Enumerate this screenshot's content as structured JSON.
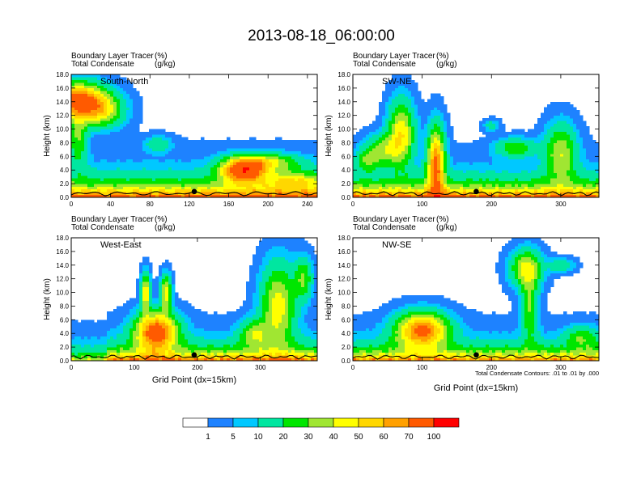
{
  "figure": {
    "title": "2013-08-18_06:00:00",
    "contour_note": "Total Condensate Contours: .01 to .01 by .000",
    "xlabel": "Grid Point (dx=15km)",
    "ylabel": "Height (km)"
  },
  "chart_data": [
    {
      "type": "heatmap",
      "panel": "South-North",
      "header_left": [
        "Boundary Layer Tracer",
        "Total Condensate"
      ],
      "header_units": [
        "(%)",
        "(g/kg)"
      ],
      "xlim": [
        0,
        250
      ],
      "xticks": [
        "0",
        "40",
        "80",
        "120",
        "160",
        "200",
        "240"
      ],
      "xtick_values": [
        0,
        40,
        80,
        120,
        160,
        200,
        240
      ],
      "ylim": [
        0,
        18
      ],
      "yticks": [
        "0.0",
        "2.0",
        "4.0",
        "6.0",
        "8.0",
        "10.0",
        "12.0",
        "14.0",
        "16.0",
        "18.0"
      ],
      "ytick_values": [
        0,
        2,
        4,
        6,
        8,
        10,
        12,
        14,
        16,
        18
      ],
      "xlabel": "",
      "ylabel": "Height (km)",
      "marker_x": 125
    },
    {
      "type": "heatmap",
      "panel": "SW-NE",
      "header_left": [
        "Boundary Layer Tracer",
        "Total Condensate"
      ],
      "header_units": [
        "(%)",
        "(g/kg)"
      ],
      "xlim": [
        0,
        355
      ],
      "xticks": [
        "0",
        "100",
        "200",
        "300"
      ],
      "xtick_values": [
        0,
        100,
        200,
        300
      ],
      "ylim": [
        0,
        18
      ],
      "yticks": [
        "0.0",
        "2.0",
        "4.0",
        "6.0",
        "8.0",
        "10.0",
        "12.0",
        "14.0",
        "16.0",
        "18.0"
      ],
      "ytick_values": [
        0,
        2,
        4,
        6,
        8,
        10,
        12,
        14,
        16,
        18
      ],
      "xlabel": "",
      "ylabel": "Height (km)",
      "marker_x": 178
    },
    {
      "type": "heatmap",
      "panel": "West-East",
      "header_left": [
        "Boundary Layer Tracer",
        "Total Condensate"
      ],
      "header_units": [
        "(%)",
        "(g/kg)"
      ],
      "xlim": [
        0,
        390
      ],
      "xticks": [
        "0",
        "100",
        "200",
        "300"
      ],
      "xtick_values": [
        0,
        100,
        200,
        300
      ],
      "ylim": [
        0,
        18
      ],
      "yticks": [
        "0.0",
        "2.0",
        "4.0",
        "6.0",
        "8.0",
        "10.0",
        "12.0",
        "14.0",
        "16.0",
        "18.0"
      ],
      "ytick_values": [
        0,
        2,
        4,
        6,
        8,
        10,
        12,
        14,
        16,
        18
      ],
      "xlabel": "Grid Point (dx=15km)",
      "ylabel": "Height (km)",
      "marker_x": 195
    },
    {
      "type": "heatmap",
      "panel": "NW-SE",
      "header_left": [
        "Boundary Layer Tracer",
        "Total Condensate"
      ],
      "header_units": [
        "(%)",
        "(g/kg)"
      ],
      "xlim": [
        0,
        355
      ],
      "xticks": [
        "0",
        "100",
        "200",
        "300"
      ],
      "xtick_values": [
        0,
        100,
        200,
        300
      ],
      "ylim": [
        0,
        18
      ],
      "yticks": [
        "0.0",
        "2.0",
        "4.0",
        "6.0",
        "8.0",
        "10.0",
        "12.0",
        "14.0",
        "16.0",
        "18.0"
      ],
      "ytick_values": [
        0,
        2,
        4,
        6,
        8,
        10,
        12,
        14,
        16,
        18
      ],
      "xlabel": "Grid Point (dx=15km)",
      "ylabel": "Height (km)",
      "marker_x": 178
    }
  ],
  "colorbar": {
    "levels": [
      0,
      1,
      5,
      10,
      20,
      30,
      40,
      50,
      60,
      70,
      100
    ],
    "labels": [
      "1",
      "5",
      "10",
      "20",
      "30",
      "40",
      "50",
      "60",
      "70",
      "100"
    ],
    "colors": [
      "#ffffff",
      "#1e82ff",
      "#00c8ff",
      "#00e6a0",
      "#00e600",
      "#a0e632",
      "#ffff00",
      "#ffd700",
      "#ffa000",
      "#ff5a00",
      "#ff0000"
    ]
  }
}
